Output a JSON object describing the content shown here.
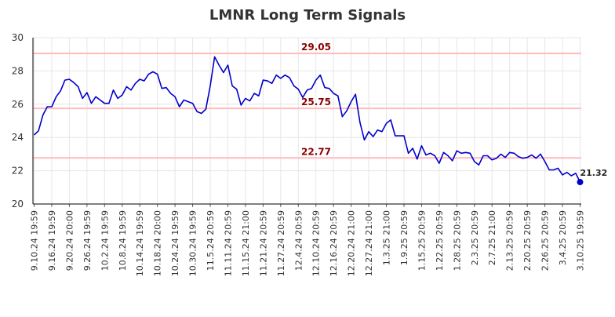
{
  "chart_data": {
    "type": "line",
    "title": "LMNR Long Term Signals",
    "xlabel": "",
    "ylabel": "",
    "ylim": [
      20,
      30
    ],
    "yticks": [
      20,
      22,
      24,
      26,
      28,
      30
    ],
    "grid": true,
    "x_tick_labels": [
      "9.10.24 19:59",
      "9.16.24 19:59",
      "9.20.24 20:00",
      "9.26.24 19:59",
      "10.2.24 19:59",
      "10.8.24 19:59",
      "10.14.24 19:59",
      "10.18.24 20:00",
      "10.24.24 19:59",
      "10.30.24 19:59",
      "11.5.24 20:59",
      "11.11.24 20:59",
      "11.15.24 21:00",
      "11.21.24 20:59",
      "11.27.24 20:59",
      "12.4.24 20:59",
      "12.10.24 20:59",
      "12.16.24 20:59",
      "12.20.24 21:00",
      "12.27.24 21:00",
      "1.3.25 21:00",
      "1.9.25 20:59",
      "1.15.25 20:59",
      "1.22.25 20:59",
      "1.28.25 20:59",
      "2.3.25 20:59",
      "2.7.25 21:00",
      "2.13.25 20:59",
      "2.20.25 20:59",
      "2.26.25 20:59",
      "3.4.25 20:59",
      "3.10.25 19:59"
    ],
    "signal_lines": [
      {
        "value": 29.05,
        "label": "29.05"
      },
      {
        "value": 25.75,
        "label": "25.75"
      },
      {
        "value": 22.77,
        "label": "22.77"
      }
    ],
    "last_value_label": "21.32",
    "colors": {
      "line": "#0000cc",
      "signal_line": "#ffbbbb",
      "signal_text": "#8b0000",
      "grid": "#e6e6e6",
      "axis": "#000000"
    },
    "series": [
      {
        "values": [
          24.15,
          24.4,
          25.35,
          25.85,
          25.85,
          26.45,
          26.8,
          27.45,
          27.5,
          27.3,
          27.05,
          26.35,
          26.7,
          26.05,
          26.45,
          26.25,
          26.05,
          26.05,
          26.85,
          26.35,
          26.55,
          27.05,
          26.85,
          27.25,
          27.5,
          27.4,
          27.8,
          27.95,
          27.8,
          26.95,
          27.0,
          26.65,
          26.45,
          25.85,
          26.25,
          26.15,
          26.05,
          25.55,
          25.45,
          25.7,
          27.1,
          28.85,
          28.35,
          27.9,
          28.35,
          27.1,
          26.9,
          25.95,
          26.35,
          26.2,
          26.65,
          26.5,
          27.45,
          27.4,
          27.25,
          27.75,
          27.55,
          27.75,
          27.6,
          27.1,
          26.9,
          26.4,
          26.85,
          26.95,
          27.45,
          27.75,
          27.0,
          26.95,
          26.65,
          26.5,
          25.25,
          25.6,
          26.15,
          26.6,
          24.9,
          23.85,
          24.35,
          24.05,
          24.45,
          24.35,
          24.85,
          25.05,
          24.1,
          24.1,
          24.1,
          23.05,
          23.35,
          22.7,
          23.5,
          22.95,
          23.05,
          22.9,
          22.45,
          23.1,
          22.9,
          22.6,
          23.2,
          23.05,
          23.1,
          23.05,
          22.55,
          22.35,
          22.9,
          22.9,
          22.65,
          22.75,
          23.0,
          22.8,
          23.1,
          23.05,
          22.85,
          22.75,
          22.8,
          22.95,
          22.75,
          23.0,
          22.55,
          22.05,
          22.05,
          22.15,
          21.75,
          21.9,
          21.7,
          21.85,
          21.32
        ]
      }
    ]
  }
}
